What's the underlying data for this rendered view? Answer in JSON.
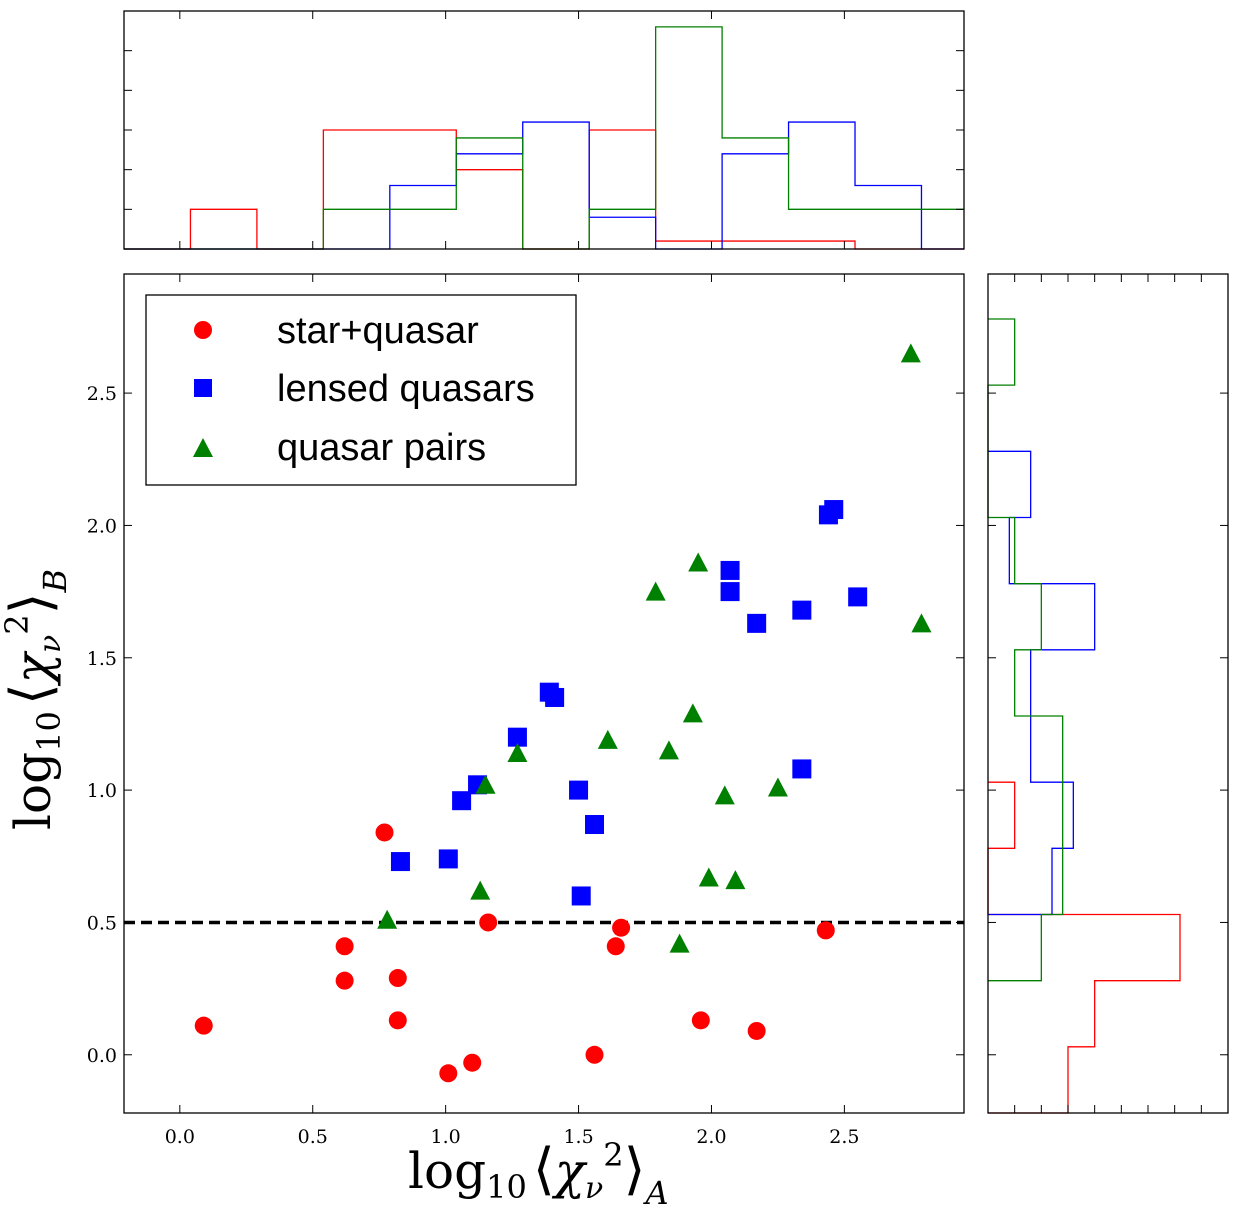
{
  "chart_data": [
    {
      "id": "scatter",
      "type": "scatter",
      "xlabel": {
        "base": "log",
        "sub": "10",
        "greek": "χ",
        "greek_sub": "ν",
        "sup": "2",
        "axis_sub": "A"
      },
      "ylabel": {
        "base": "log",
        "sub": "10",
        "greek": "χ",
        "greek_sub": "ν",
        "sup": "2",
        "axis_sub": "B"
      },
      "xlim": [
        -0.21,
        2.95
      ],
      "ylim": [
        -0.22,
        2.95
      ],
      "xticks": [
        "0.0",
        "0.5",
        "1.0",
        "1.5",
        "2.0",
        "2.5"
      ],
      "yticks": [
        "0.0",
        "0.5",
        "1.0",
        "1.5",
        "2.0",
        "2.5"
      ],
      "threshold": {
        "y": 0.5,
        "style": "dashed",
        "color": "#000000"
      },
      "legend": {
        "position": "top-left"
      },
      "series": [
        {
          "name": "star+quasar",
          "color": "#ff0000",
          "marker": "circle",
          "points": [
            [
              0.09,
              0.11
            ],
            [
              0.62,
              0.41
            ],
            [
              0.62,
              0.28
            ],
            [
              0.77,
              0.84
            ],
            [
              0.82,
              0.29
            ],
            [
              0.82,
              0.13
            ],
            [
              1.01,
              -0.07
            ],
            [
              1.1,
              -0.03
            ],
            [
              1.16,
              0.5
            ],
            [
              1.56,
              0.0
            ],
            [
              1.64,
              0.41
            ],
            [
              1.66,
              0.48
            ],
            [
              1.96,
              0.13
            ],
            [
              2.17,
              0.09
            ],
            [
              2.43,
              0.47
            ]
          ]
        },
        {
          "name": "lensed quasars",
          "color": "#0000ff",
          "marker": "square",
          "points": [
            [
              0.83,
              0.73
            ],
            [
              1.01,
              0.74
            ],
            [
              1.06,
              0.96
            ],
            [
              1.12,
              1.02
            ],
            [
              1.27,
              1.2
            ],
            [
              1.39,
              1.37
            ],
            [
              1.41,
              1.35
            ],
            [
              1.5,
              1.0
            ],
            [
              1.51,
              0.6
            ],
            [
              1.56,
              0.87
            ],
            [
              2.07,
              1.83
            ],
            [
              2.07,
              1.75
            ],
            [
              2.17,
              1.63
            ],
            [
              2.34,
              1.68
            ],
            [
              2.34,
              1.08
            ],
            [
              2.44,
              2.04
            ],
            [
              2.46,
              2.06
            ],
            [
              2.55,
              1.73
            ]
          ]
        },
        {
          "name": "quasar pairs",
          "color": "#008000",
          "marker": "triangle",
          "points": [
            [
              0.78,
              0.51
            ],
            [
              1.13,
              0.62
            ],
            [
              1.15,
              1.02
            ],
            [
              1.27,
              1.14
            ],
            [
              1.61,
              1.19
            ],
            [
              1.79,
              1.75
            ],
            [
              1.84,
              1.15
            ],
            [
              1.88,
              0.42
            ],
            [
              1.93,
              1.29
            ],
            [
              1.95,
              1.86
            ],
            [
              1.99,
              0.67
            ],
            [
              2.05,
              0.98
            ],
            [
              2.09,
              0.66
            ],
            [
              2.25,
              1.01
            ],
            [
              2.75,
              2.65
            ],
            [
              2.79,
              1.63
            ]
          ]
        }
      ]
    },
    {
      "id": "hist-top",
      "type": "histogram",
      "orientation": "vertical",
      "xlim": [
        -0.21,
        2.95
      ],
      "ylim": [
        0,
        0.3
      ],
      "series": [
        {
          "name": "star+quasar",
          "color": "#ff0000",
          "bin_edges": [
            -0.21,
            0.04,
            0.29,
            0.54,
            0.79,
            1.04,
            1.29,
            1.54,
            1.79,
            2.04,
            2.29,
            2.54,
            2.79,
            2.95
          ],
          "counts": [
            0,
            0.05,
            0,
            0.15,
            0.15,
            0.1,
            0,
            0.15,
            0.01,
            0.01,
            0.01,
            0,
            0,
            0
          ]
        },
        {
          "name": "lensed quasars",
          "color": "#0000ff",
          "bin_edges": [
            -0.21,
            0.04,
            0.29,
            0.54,
            0.79,
            1.04,
            1.29,
            1.54,
            1.79,
            2.04,
            2.29,
            2.54,
            2.79,
            2.95
          ],
          "counts": [
            0,
            0,
            0,
            0,
            0.08,
            0.12,
            0.16,
            0.04,
            0,
            0.12,
            0.16,
            0.08,
            0,
            0
          ]
        },
        {
          "name": "quasar pairs",
          "color": "#008000",
          "bin_edges": [
            -0.21,
            0.04,
            0.29,
            0.54,
            0.79,
            1.04,
            1.29,
            1.54,
            1.79,
            2.04,
            2.29,
            2.54,
            2.79,
            2.95
          ],
          "counts": [
            0,
            0,
            0,
            0.05,
            0.05,
            0.14,
            0,
            0.05,
            0.28,
            0.14,
            0.05,
            0.05,
            0.05,
            0.05
          ]
        }
      ]
    },
    {
      "id": "hist-right",
      "type": "histogram",
      "orientation": "horizontal",
      "ylim": [
        -0.22,
        2.95
      ],
      "xlim": [
        0,
        0.45
      ],
      "series": [
        {
          "name": "star+quasar",
          "color": "#ff0000",
          "bin_edges": [
            -0.22,
            0.03,
            0.28,
            0.53,
            0.78,
            1.03
          ],
          "counts": [
            0.15,
            0.2,
            0.36,
            0,
            0.05
          ]
        },
        {
          "name": "lensed quasars",
          "color": "#0000ff",
          "bin_edges": [
            0.53,
            0.78,
            1.03,
            1.28,
            1.53,
            1.78,
            2.03,
            2.28
          ],
          "counts": [
            0.12,
            0.16,
            0.08,
            0.08,
            0.2,
            0.04,
            0.08
          ]
        },
        {
          "name": "quasar pairs",
          "color": "#008000",
          "bin_edges": [
            0.28,
            0.53,
            0.78,
            1.03,
            1.28,
            1.53,
            1.78,
            2.03,
            2.53,
            2.78
          ],
          "counts": [
            0.1,
            0.14,
            0.14,
            0.14,
            0.05,
            0.1,
            0.05,
            0,
            0.05
          ]
        }
      ]
    }
  ]
}
